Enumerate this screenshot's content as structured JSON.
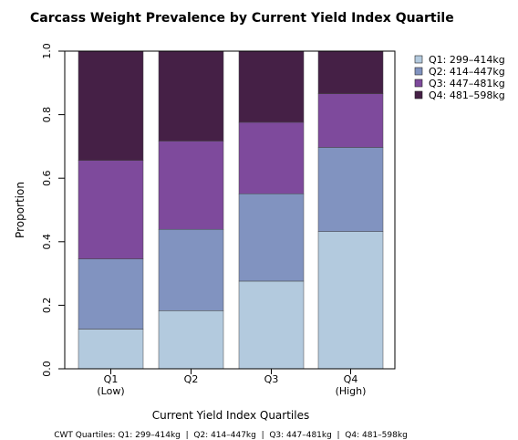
{
  "chart_data": {
    "type": "bar",
    "stacked": true,
    "title": "Carcass Weight Prevalence by Current Yield Index Quartile",
    "xlabel": "Current Yield Index Quartiles",
    "ylabel": "Proportion",
    "ylim": [
      0,
      1
    ],
    "yticks": [
      "0.0",
      "0.2",
      "0.4",
      "0.6",
      "0.8",
      "1.0"
    ],
    "categories": [
      {
        "line1": "Q1",
        "line2": "(Low)"
      },
      {
        "line1": "Q2",
        "line2": ""
      },
      {
        "line1": "Q3",
        "line2": ""
      },
      {
        "line1": "Q4",
        "line2": "(High)"
      }
    ],
    "series": [
      {
        "name": "Q1: 299–414kg",
        "color": "#b3cade",
        "values": [
          0.125,
          0.183,
          0.276,
          0.432
        ]
      },
      {
        "name": "Q2: 414–447kg",
        "color": "#8193c0",
        "values": [
          0.221,
          0.256,
          0.275,
          0.265
        ]
      },
      {
        "name": "Q3: 447–481kg",
        "color": "#7e4a9c",
        "values": [
          0.31,
          0.278,
          0.225,
          0.169
        ]
      },
      {
        "name": "Q4: 481–598kg",
        "color": "#452046",
        "values": [
          0.344,
          0.283,
          0.224,
          0.134
        ]
      }
    ],
    "legend_position": "top-right",
    "grid": false,
    "caption": "CWT Quartiles: Q1: 299–414kg  |  Q2: 414–447kg  |  Q3: 447–481kg  |  Q4: 481–598kg"
  }
}
